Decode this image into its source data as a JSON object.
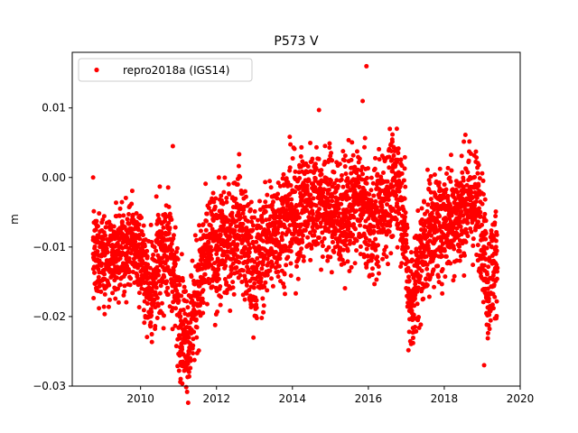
{
  "chart_data": {
    "type": "scatter",
    "title": "P573 V",
    "xlabel": "",
    "ylabel": "m",
    "xlim": [
      2008.2,
      2020.0
    ],
    "ylim": [
      -0.03,
      0.018
    ],
    "xticks": [
      2010,
      2012,
      2014,
      2016,
      2018,
      2020
    ],
    "xtick_labels": [
      "2010",
      "2012",
      "2014",
      "2016",
      "2018",
      "2020"
    ],
    "yticks": [
      -0.03,
      -0.02,
      -0.01,
      0.0,
      0.01
    ],
    "ytick_labels": [
      "−0.03",
      "−0.02",
      "−0.01",
      "0.00",
      "0.01"
    ],
    "grid": false,
    "legend_position": "top-left",
    "series": [
      {
        "name": "repro2018a (IGS14)",
        "color": "#ff0000",
        "marker": "circle",
        "x": [
          2008.75,
          2008.85,
          2009.0,
          2009.15,
          2009.3,
          2009.45,
          2009.6,
          2009.75,
          2009.9,
          2010.05,
          2010.2,
          2010.35,
          2010.5,
          2010.65,
          2010.8,
          2010.95,
          2011.05,
          2011.15,
          2011.25,
          2011.4,
          2011.55,
          2011.7,
          2011.85,
          2012.0,
          2012.15,
          2012.3,
          2012.45,
          2012.6,
          2012.75,
          2012.9,
          2013.05,
          2013.2,
          2013.35,
          2013.5,
          2013.65,
          2013.8,
          2013.95,
          2014.1,
          2014.25,
          2014.4,
          2014.55,
          2014.7,
          2014.85,
          2015.0,
          2015.15,
          2015.3,
          2015.45,
          2015.6,
          2015.75,
          2015.9,
          2016.05,
          2016.2,
          2016.35,
          2016.5,
          2016.65,
          2016.8,
          2016.95,
          2017.05,
          2017.15,
          2017.3,
          2017.45,
          2017.6,
          2017.75,
          2017.9,
          2018.05,
          2018.2,
          2018.35,
          2018.5,
          2018.65,
          2018.8,
          2018.95,
          2019.05,
          2019.15,
          2019.3,
          2019.4
        ],
        "y": [
          -0.011,
          -0.012,
          -0.01,
          -0.013,
          -0.012,
          -0.01,
          -0.011,
          -0.009,
          -0.01,
          -0.012,
          -0.016,
          -0.015,
          -0.012,
          -0.01,
          -0.011,
          -0.017,
          -0.02,
          -0.022,
          -0.023,
          -0.019,
          -0.015,
          -0.012,
          -0.01,
          -0.011,
          -0.009,
          -0.01,
          -0.008,
          -0.006,
          -0.01,
          -0.012,
          -0.013,
          -0.011,
          -0.009,
          -0.008,
          -0.007,
          -0.006,
          -0.005,
          -0.006,
          -0.004,
          -0.004,
          -0.003,
          -0.003,
          -0.004,
          -0.004,
          -0.005,
          -0.006,
          -0.005,
          -0.004,
          -0.003,
          -0.005,
          -0.007,
          -0.006,
          -0.004,
          -0.003,
          -0.002,
          -0.001,
          -0.006,
          -0.016,
          -0.018,
          -0.014,
          -0.01,
          -0.008,
          -0.007,
          -0.007,
          -0.006,
          -0.005,
          -0.006,
          -0.004,
          -0.003,
          -0.004,
          -0.005,
          -0.01,
          -0.016,
          -0.012,
          -0.013
        ],
        "note_spread": [
          0.003,
          0.003,
          0.003,
          0.003,
          0.003,
          0.003,
          0.003,
          0.003,
          0.003,
          0.003,
          0.004,
          0.004,
          0.004,
          0.004,
          0.004,
          0.004,
          0.004,
          0.004,
          0.004,
          0.004,
          0.004,
          0.004,
          0.004,
          0.004,
          0.004,
          0.004,
          0.004,
          0.004,
          0.004,
          0.004,
          0.004,
          0.004,
          0.004,
          0.004,
          0.004,
          0.004,
          0.004,
          0.004,
          0.004,
          0.004,
          0.004,
          0.004,
          0.004,
          0.004,
          0.004,
          0.004,
          0.004,
          0.004,
          0.004,
          0.004,
          0.004,
          0.004,
          0.004,
          0.004,
          0.004,
          0.004,
          0.004,
          0.004,
          0.004,
          0.004,
          0.004,
          0.004,
          0.004,
          0.004,
          0.004,
          0.004,
          0.004,
          0.004,
          0.004,
          0.004,
          0.004,
          0.004,
          0.004,
          0.004,
          0.004
        ]
      }
    ],
    "outliers": {
      "x": [
        2008.75,
        2010.85,
        2014.7,
        2015.95,
        2015.85,
        2016.75,
        2011.15,
        2019.05
      ],
      "y": [
        0.0,
        0.0045,
        0.0097,
        0.016,
        0.011,
        0.007,
        -0.0278,
        -0.027
      ]
    }
  }
}
